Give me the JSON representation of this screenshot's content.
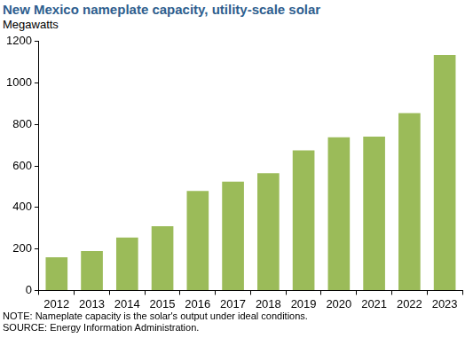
{
  "chart_data": {
    "type": "bar",
    "title": "New Mexico nameplate capacity, utility-scale solar",
    "subtitle": "Megawatts",
    "categories": [
      "2012",
      "2013",
      "2014",
      "2015",
      "2016",
      "2017",
      "2018",
      "2019",
      "2020",
      "2021",
      "2022",
      "2023"
    ],
    "values": [
      160,
      190,
      255,
      310,
      480,
      525,
      565,
      675,
      738,
      742,
      855,
      1135
    ],
    "color": "#9bbb59",
    "ylim": [
      0,
      1200
    ],
    "yticks": [
      0,
      200,
      400,
      600,
      800,
      1000,
      1200
    ],
    "grid": false,
    "annotations": [
      "NOTE: Nameplate capacity is the solar's output under ideal conditions.",
      "SOURCE: Energy Information Administration."
    ]
  }
}
